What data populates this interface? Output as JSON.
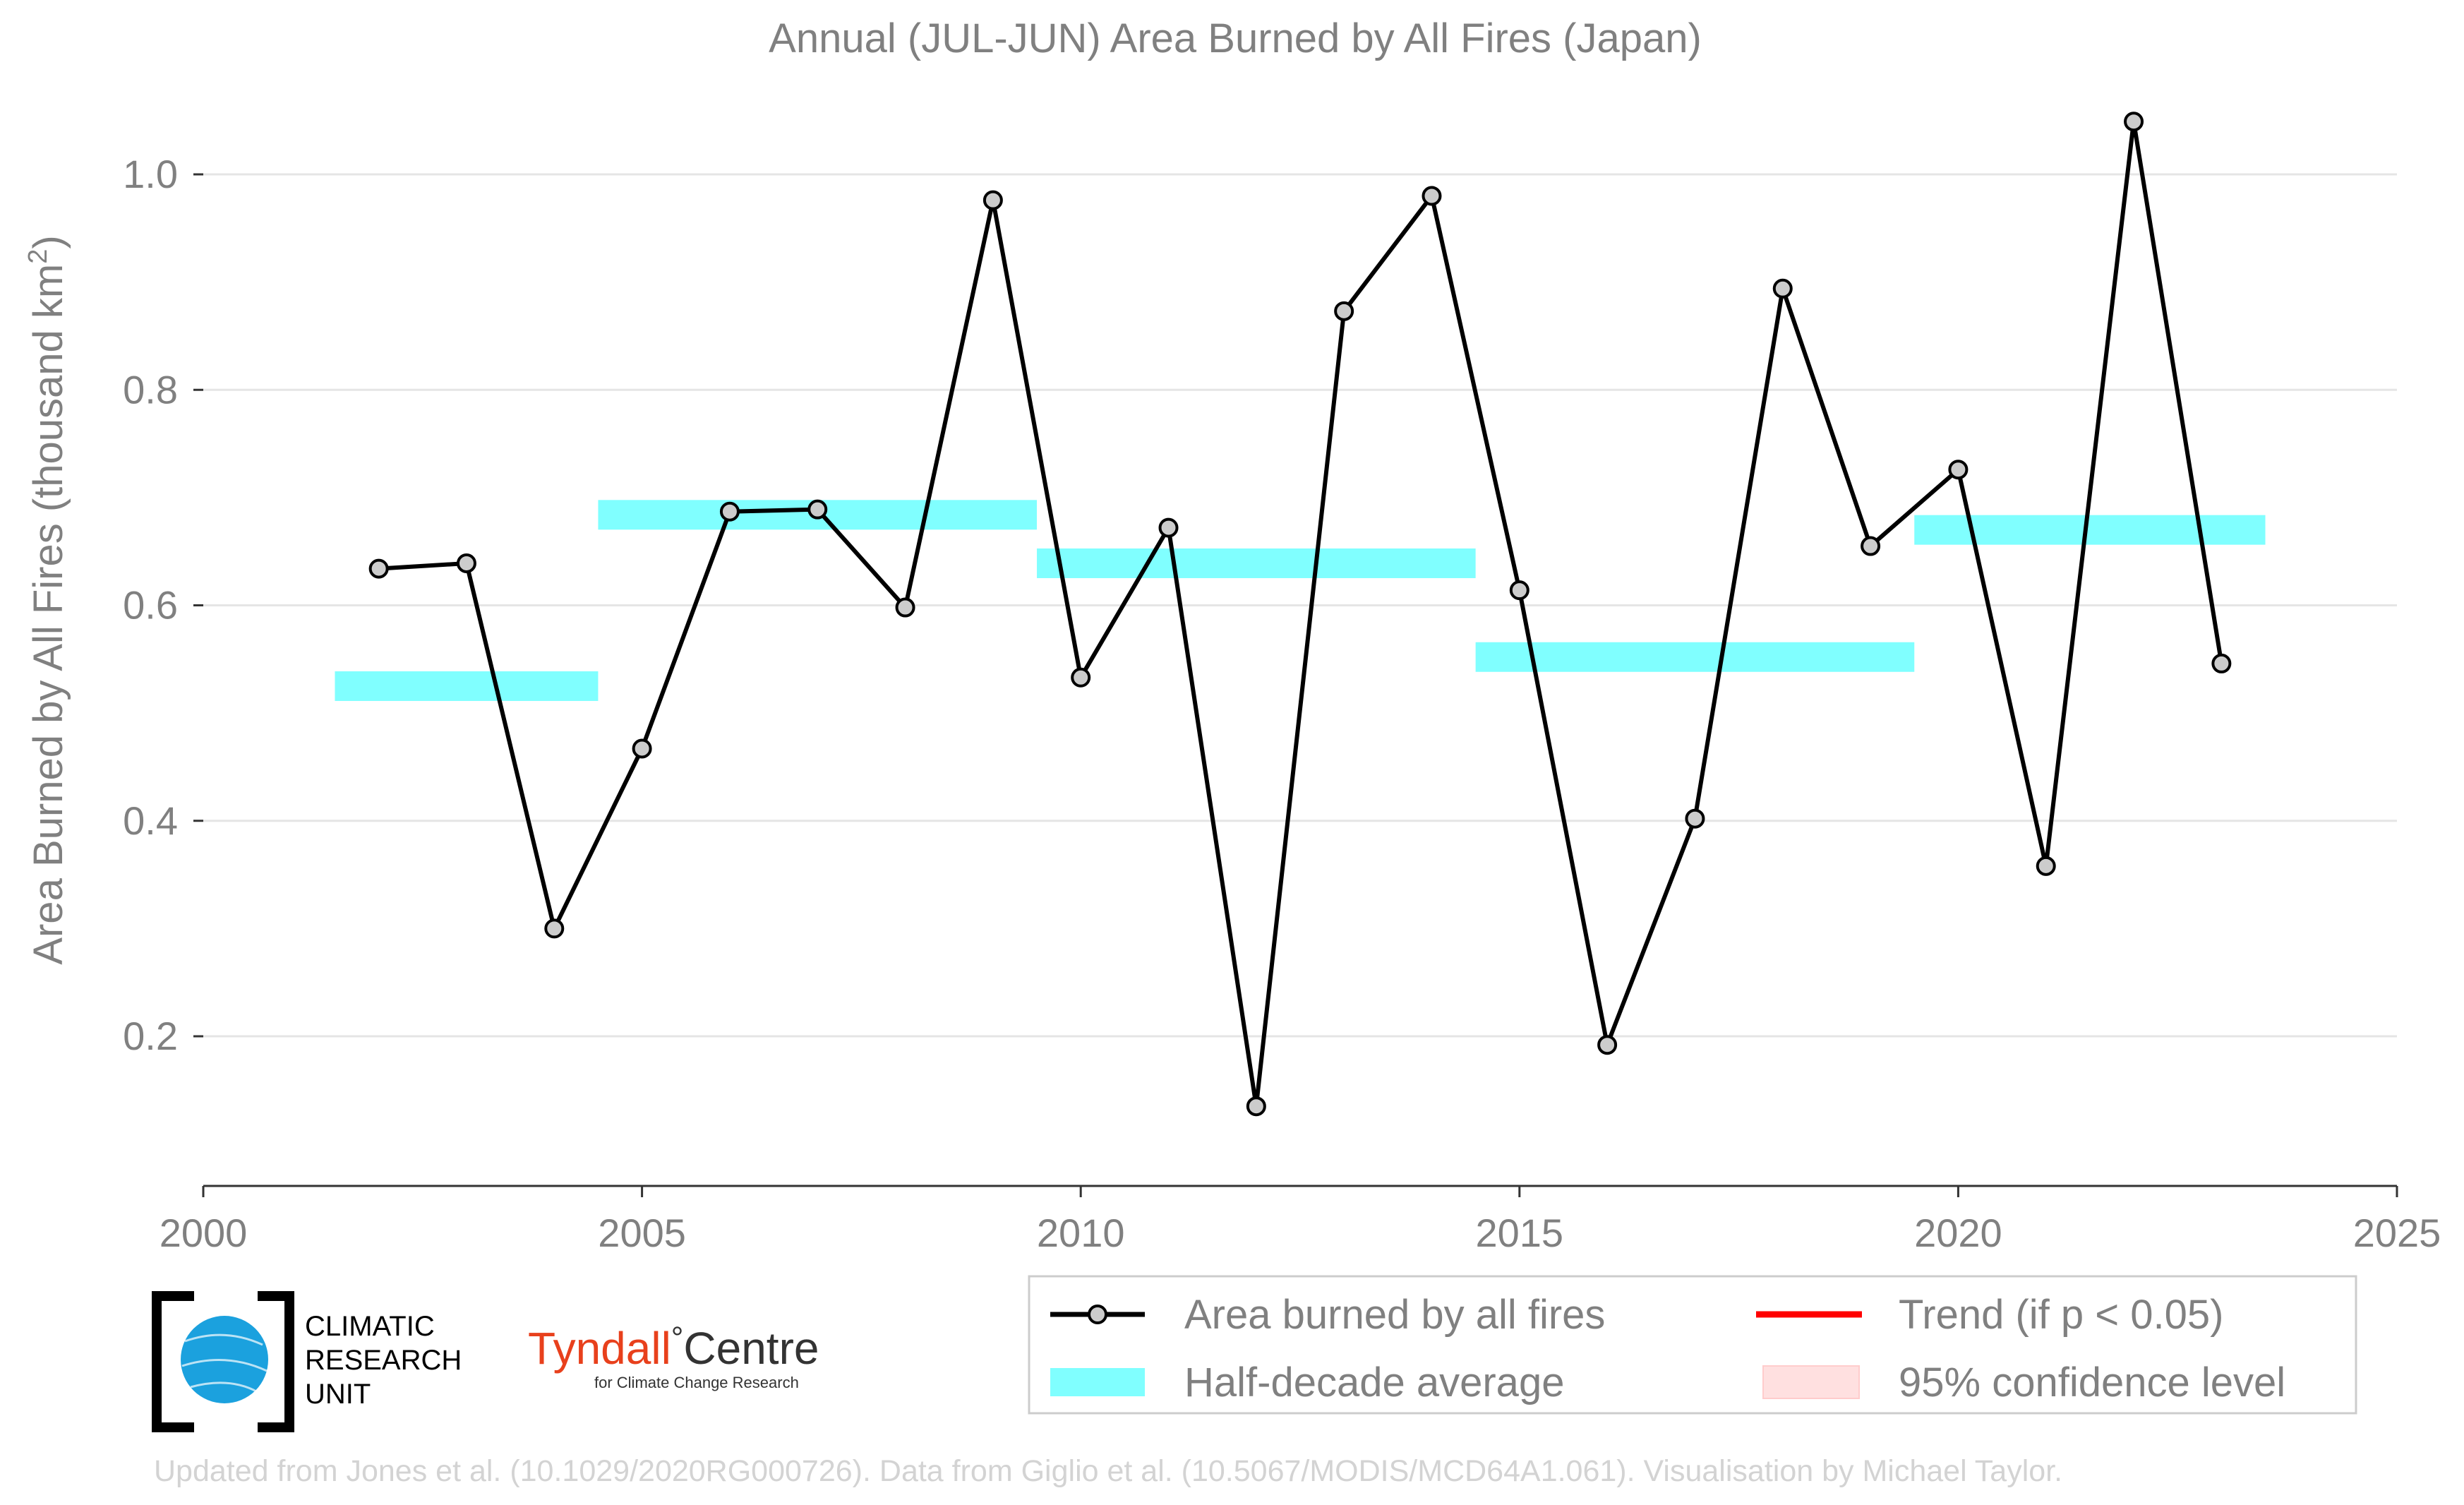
{
  "chart_data": {
    "type": "line",
    "title": "Annual (JUL-JUN) Area Burned by All Fires (Japan)",
    "ylabel": "Area Burned by All Fires (thousand km",
    "ylabel_sup": "2",
    "ylabel_close": ")",
    "xlabel": "",
    "xlim": [
      2000,
      2025
    ],
    "ylim": [
      0.06,
      1.07
    ],
    "x_ticks": [
      2000,
      2005,
      2010,
      2015,
      2020,
      2025
    ],
    "y_ticks": [
      0.2,
      0.4,
      0.6,
      0.8,
      1.0
    ],
    "y_tick_labels": [
      "0.2",
      "0.4",
      "0.6",
      "0.8",
      "1.0"
    ],
    "grid": "horizontal",
    "legend_position": "bottom-right",
    "series": [
      {
        "name": "Area burned by all fires",
        "color": "#000000",
        "marker_fill": "#cccccc",
        "x": [
          2002,
          2003,
          2004,
          2005,
          2006,
          2007,
          2008,
          2009,
          2010,
          2011,
          2012,
          2013,
          2014,
          2015,
          2016,
          2017,
          2018,
          2019,
          2020,
          2021,
          2022,
          2023
        ],
        "values": [
          0.634,
          0.639,
          0.3,
          0.467,
          0.687,
          0.689,
          0.598,
          0.976,
          0.533,
          0.672,
          0.135,
          0.873,
          0.98,
          0.614,
          0.192,
          0.402,
          0.894,
          0.655,
          0.726,
          0.358,
          1.049,
          0.546
        ]
      }
    ],
    "half_decade_average": {
      "name": "Half-decade average",
      "color": "#80ffff",
      "segments": [
        {
          "x_start": 2001.5,
          "x_end": 2004.5,
          "value": 0.525
        },
        {
          "x_start": 2004.5,
          "x_end": 2009.5,
          "value": 0.684
        },
        {
          "x_start": 2009.5,
          "x_end": 2014.5,
          "value": 0.639
        },
        {
          "x_start": 2014.5,
          "x_end": 2019.5,
          "value": 0.552
        },
        {
          "x_start": 2019.5,
          "x_end": 2023.5,
          "value": 0.67
        }
      ]
    },
    "legend": [
      {
        "label": "Area burned by all fires",
        "kind": "line-marker",
        "color": "#000000"
      },
      {
        "label": "Trend (if p < 0.05)",
        "kind": "line",
        "color": "#ff0000"
      },
      {
        "label": "Half-decade average",
        "kind": "band",
        "color": "#80ffff"
      },
      {
        "label": "95% confidence level",
        "kind": "patch",
        "color": "#ffe0e0"
      }
    ]
  },
  "logos": {
    "cru_lines": [
      "CLIMATIC",
      "RESEARCH",
      "UNIT"
    ],
    "tyndall_main_red": "Tyndall",
    "tyndall_degree": "°",
    "tyndall_main_dark": "Centre",
    "tyndall_sub": "for Climate Change Research"
  },
  "credit": "Updated from Jones et al. (10.1029/2020RG000726). Data from Giglio et al. (10.5067/MODIS/MCD64A1.061). Visualisation by Michael Taylor."
}
